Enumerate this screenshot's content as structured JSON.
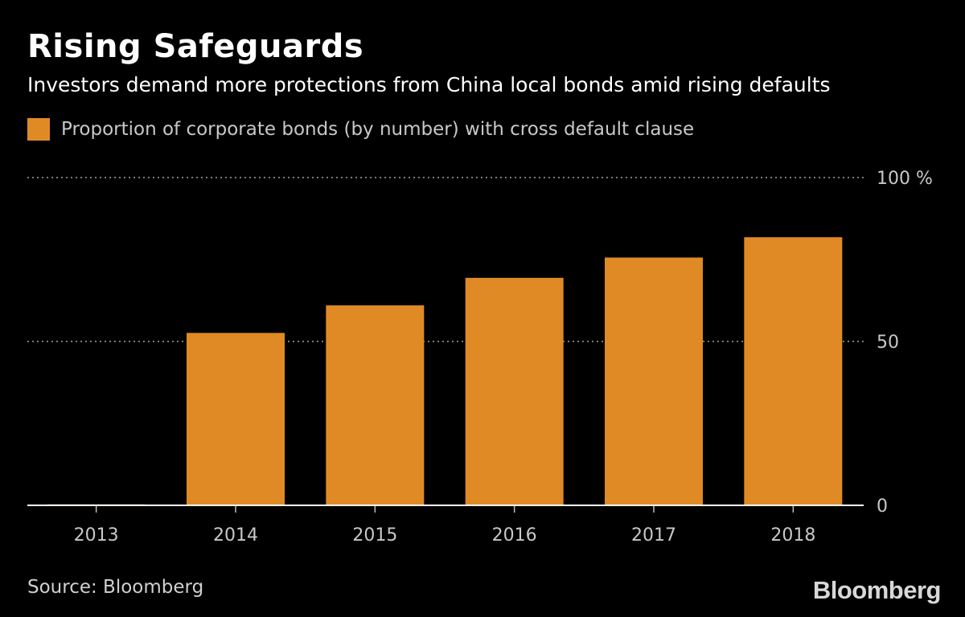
{
  "header": {
    "title": "Rising Safeguards",
    "subtitle": "Investors demand more protections from China local bonds amid rising defaults"
  },
  "legend": {
    "label": "Proportion of corporate bonds (by number) with cross default clause",
    "color": "#e08a25"
  },
  "footer": {
    "source": "Source: Bloomberg",
    "brand": "Bloomberg"
  },
  "colors": {
    "background": "#000000",
    "bar": "#e08a25",
    "gridline": "#7a7a7a",
    "axis": "#ffffff"
  },
  "chart_data": {
    "type": "bar",
    "categories": [
      "2013",
      "2014",
      "2015",
      "2016",
      "2017",
      "2018"
    ],
    "values": [
      0.3,
      52.6,
      61,
      69.4,
      75.6,
      81.8
    ],
    "series": [
      {
        "name": "Proportion of corporate bonds (by number) with cross default clause",
        "values": [
          0.3,
          52.6,
          61,
          69.4,
          75.6,
          81.8
        ]
      }
    ],
    "title": "Rising Safeguards",
    "subtitle": "Investors demand more protections from China local bonds amid rising defaults",
    "ylim": [
      0,
      100
    ],
    "yticks": [
      {
        "value": 0,
        "label": "0"
      },
      {
        "value": 50,
        "label": "50"
      },
      {
        "value": 100,
        "label": "100 %"
      }
    ],
    "grid": true,
    "legend_position": "top-left",
    "y_axis_side": "right"
  }
}
